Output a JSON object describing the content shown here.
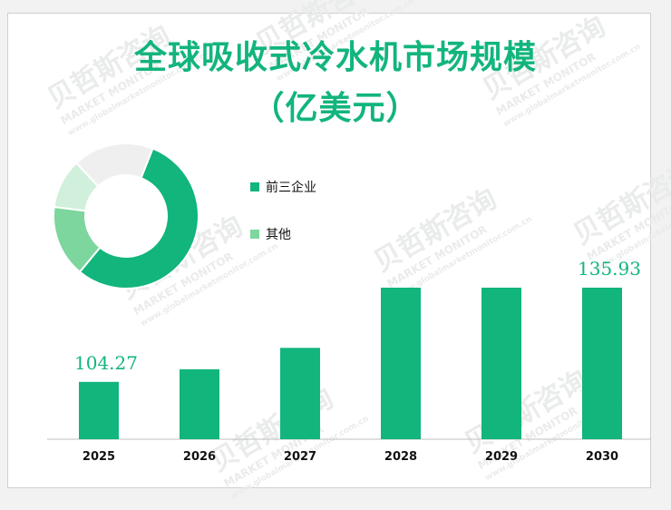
{
  "title_line1": "全球吸收式冷水机市场规模",
  "title_line2": "（亿美元）",
  "chart_data": [
    {
      "type": "pie",
      "subtype": "donut",
      "legend": [
        "前三企业",
        "其他"
      ],
      "slices": [
        {
          "label": "前三企业",
          "value": 55,
          "color": "#12b57c"
        },
        {
          "label": "其他",
          "value": 16,
          "color": "#7dd69d"
        },
        {
          "label": "",
          "value": 11,
          "color": "#d1f0dc"
        },
        {
          "label": "",
          "value": 18,
          "color": "#efefef"
        }
      ]
    },
    {
      "type": "bar",
      "categories": [
        "2025",
        "2026",
        "2027",
        "2028",
        "2029",
        "2030"
      ],
      "values": [
        104.27,
        108.5,
        115.7,
        135.93,
        135.93,
        135.93
      ],
      "data_labels": [
        "104.27",
        "",
        "",
        "",
        "",
        "135.93"
      ],
      "color": "#12b57c",
      "ylim": [
        85,
        140
      ]
    }
  ],
  "watermark": {
    "text": "贝哲斯咨询",
    "subtext": "MARKET MONITOR",
    "url": "www.globalmarketmonitor.com.cn"
  },
  "colors": {
    "accent": "#12b57c",
    "light_green": "#7dd69d",
    "pale_green": "#d1f0dc",
    "grey": "#efefef"
  }
}
